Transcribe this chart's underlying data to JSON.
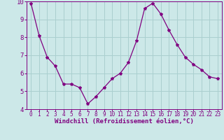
{
  "x": [
    0,
    1,
    2,
    3,
    4,
    5,
    6,
    7,
    8,
    9,
    10,
    11,
    12,
    13,
    14,
    15,
    16,
    17,
    18,
    19,
    20,
    21,
    22,
    23
  ],
  "y": [
    9.9,
    8.1,
    6.9,
    6.4,
    5.4,
    5.4,
    5.2,
    4.3,
    4.7,
    5.2,
    5.7,
    6.0,
    6.6,
    7.8,
    9.6,
    9.9,
    9.3,
    8.4,
    7.6,
    6.9,
    6.5,
    6.2,
    5.8,
    5.7
  ],
  "line_color": "#800080",
  "marker": "*",
  "bg_color": "#cce8e8",
  "grid_color": "#aacfcf",
  "xlabel": "Windchill (Refroidissement éolien,°C)",
  "tick_color": "#800080",
  "ylim": [
    4,
    10
  ],
  "xlim": [
    -0.5,
    23.5
  ],
  "yticks": [
    4,
    5,
    6,
    7,
    8,
    9,
    10
  ],
  "xtick_labels": [
    "0",
    "1",
    "2",
    "3",
    "4",
    "5",
    "6",
    "7",
    "8",
    "9",
    "10",
    "11",
    "12",
    "13",
    "14",
    "15",
    "16",
    "17",
    "18",
    "19",
    "20",
    "21",
    "22",
    "23"
  ]
}
